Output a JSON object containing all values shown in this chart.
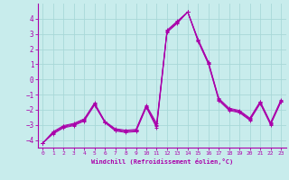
{
  "xlabel": "Windchill (Refroidissement éolien,°C)",
  "background_color": "#c8ecec",
  "grid_color": "#a8d8d8",
  "line_color": "#aa00aa",
  "x": [
    0,
    1,
    2,
    3,
    4,
    5,
    6,
    7,
    8,
    9,
    10,
    11,
    12,
    13,
    14,
    15,
    16,
    17,
    18,
    19,
    20,
    21,
    22,
    23
  ],
  "lines": [
    [
      -4.2,
      -3.6,
      -3.2,
      -3.05,
      -2.75,
      -1.7,
      -2.85,
      -3.4,
      -3.5,
      -3.45,
      -1.85,
      -3.2,
      3.1,
      3.7,
      4.45,
      2.5,
      1.0,
      -1.4,
      -2.05,
      -2.2,
      -2.7,
      -1.6,
      -3.0,
      -1.5
    ],
    [
      -4.2,
      -3.55,
      -3.15,
      -3.0,
      -2.7,
      -1.65,
      -2.82,
      -3.35,
      -3.45,
      -3.4,
      -1.8,
      -3.1,
      3.15,
      3.75,
      4.45,
      2.55,
      1.05,
      -1.35,
      -2.0,
      -2.15,
      -2.65,
      -1.55,
      -2.95,
      -1.45
    ],
    [
      -4.2,
      -3.5,
      -3.1,
      -2.95,
      -2.65,
      -1.6,
      -2.79,
      -3.3,
      -3.4,
      -3.35,
      -1.75,
      -3.0,
      3.2,
      3.8,
      4.45,
      2.6,
      1.1,
      -1.3,
      -1.95,
      -2.1,
      -2.6,
      -1.5,
      -2.9,
      -1.4
    ],
    [
      -4.2,
      -3.45,
      -3.05,
      -2.9,
      -2.6,
      -1.55,
      -2.76,
      -3.25,
      -3.35,
      -3.3,
      -1.7,
      -2.9,
      3.25,
      3.85,
      4.45,
      2.65,
      1.15,
      -1.25,
      -1.9,
      -2.05,
      -2.55,
      -1.45,
      -2.85,
      -1.35
    ]
  ],
  "ylim": [
    -4.5,
    5.0
  ],
  "yticks": [
    -4,
    -3,
    -2,
    -1,
    0,
    1,
    2,
    3,
    4
  ],
  "xlim": [
    -0.5,
    23.5
  ],
  "xticks": [
    0,
    1,
    2,
    3,
    4,
    5,
    6,
    7,
    8,
    9,
    10,
    11,
    12,
    13,
    14,
    15,
    16,
    17,
    18,
    19,
    20,
    21,
    22,
    23
  ]
}
